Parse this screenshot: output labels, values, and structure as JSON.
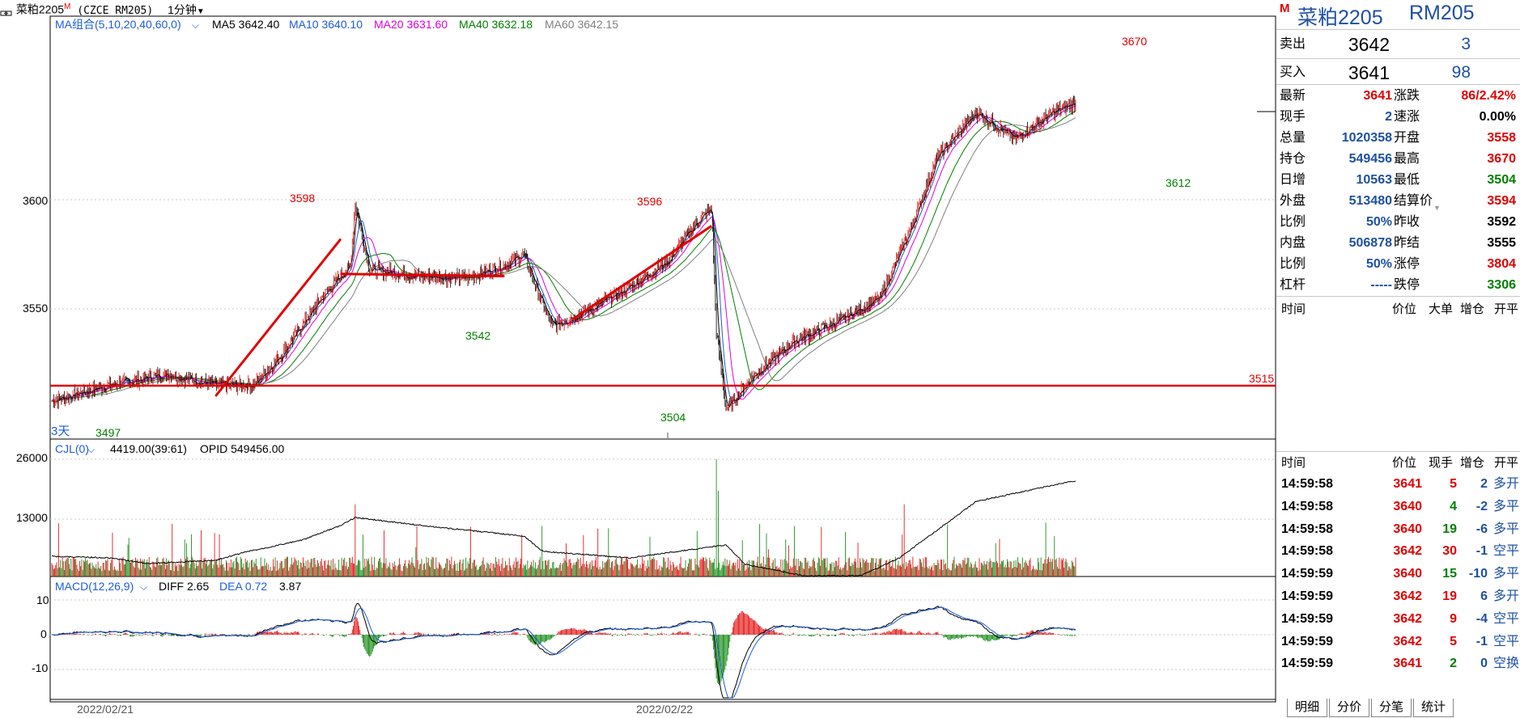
{
  "window": {
    "title_cn": "菜粕2205",
    "title_mark": "M",
    "code": "(CZCE RM205)",
    "period": "1分钟",
    "period_arrow": "chevron-down-icon",
    "link_icon": "link-icon"
  },
  "main_chart": {
    "ma_title": "MA组合(5,10,20,40,60,0)",
    "ma_legend": [
      {
        "label": "MA5 3642.40",
        "color": "#000000"
      },
      {
        "label": "MA10 3640.10",
        "color": "#1e5cdc"
      },
      {
        "label": "MA20 3631.60",
        "color": "#e000e0"
      },
      {
        "label": "MA40 3632.18",
        "color": "#008000"
      },
      {
        "label": "MA60 3642.15",
        "color": "#808080"
      }
    ],
    "y_ticks": [
      "3600",
      "3550"
    ],
    "annotations": [
      "3598",
      "3596",
      "3670",
      "3542",
      "3504",
      "3612",
      "3497",
      "3515",
      "3天"
    ],
    "dates": [
      "2022/02/21",
      "2022/02/22"
    ]
  },
  "volume_chart": {
    "title": "CJL(0)",
    "values": "4419.00(39:61)",
    "opid": "OPID 549456.00",
    "y_ticks": [
      "26000",
      "13000"
    ]
  },
  "macd_chart": {
    "title": "MACD(12,26,9)",
    "diff": "DIFF 2.65",
    "dea": "DEA 0.72",
    "macd": "3.87",
    "y_ticks": [
      "10",
      "0",
      "-10"
    ]
  },
  "chart_data": {
    "type": "candlestick",
    "title": "菜粕2205 1分钟",
    "x_dates": [
      "2022/02/21",
      "2022/02/22"
    ],
    "ylim": [
      3490,
      3680
    ],
    "price_path": [
      [
        0,
        3508
      ],
      [
        60,
        3515
      ],
      [
        120,
        3520
      ],
      [
        170,
        3515
      ],
      [
        210,
        3515
      ],
      [
        240,
        3530
      ],
      [
        280,
        3555
      ],
      [
        310,
        3570
      ],
      [
        315,
        3598
      ],
      [
        330,
        3568
      ],
      [
        380,
        3565
      ],
      [
        430,
        3564
      ],
      [
        470,
        3570
      ],
      [
        490,
        3575
      ],
      [
        510,
        3552
      ],
      [
        520,
        3542
      ],
      [
        560,
        3550
      ],
      [
        600,
        3560
      ],
      [
        640,
        3572
      ],
      [
        670,
        3590
      ],
      [
        685,
        3596
      ],
      [
        690,
        3540
      ],
      [
        700,
        3504
      ],
      [
        730,
        3520
      ],
      [
        770,
        3535
      ],
      [
        820,
        3545
      ],
      [
        860,
        3555
      ],
      [
        890,
        3585
      ],
      [
        920,
        3620
      ],
      [
        960,
        3640
      ],
      [
        1000,
        3628
      ],
      [
        1040,
        3640
      ],
      [
        1080,
        3648
      ],
      [
        1120,
        3655
      ],
      [
        1140,
        3665
      ],
      [
        1165,
        3670
      ],
      [
        1190,
        3662
      ],
      [
        1210,
        3640
      ],
      [
        1218,
        3612
      ],
      [
        1240,
        3620
      ],
      [
        1262,
        3645
      ],
      [
        1264,
        3641
      ]
    ],
    "levels": {
      "high_3598": 3598,
      "high_3596": 3596,
      "high_3670": 3670,
      "low_3542": 3542,
      "low_3504": 3504,
      "low_3612": 3612,
      "low_3497": 3497,
      "horizontal_line": 3515
    },
    "volume": {
      "ylim": [
        0,
        26000
      ],
      "ticks": [
        26000,
        13000
      ],
      "last": 4419,
      "opid": 549456
    },
    "macd": {
      "ylim": [
        -15,
        12
      ],
      "ticks": [
        10,
        0,
        -10
      ],
      "diff": 2.65,
      "dea": 0.72,
      "macd": 3.87
    }
  },
  "quote": {
    "name": "菜粕2205",
    "code": "RM205",
    "mark": "M",
    "sell_label": "卖出",
    "sell_price": "3642",
    "sell_vol": "3",
    "buy_label": "买入",
    "buy_price": "3641",
    "buy_vol": "98",
    "left": [
      {
        "label": "最新",
        "value": "3641",
        "color": "red"
      },
      {
        "label": "现手",
        "value": "2",
        "color": "blue"
      },
      {
        "label": "总量",
        "value": "1020358",
        "color": "blue"
      },
      {
        "label": "持仓",
        "value": "549456",
        "color": "blue"
      },
      {
        "label": "日增",
        "value": "10563",
        "color": "blue"
      },
      {
        "label": "外盘",
        "value": "513480",
        "color": "blue"
      },
      {
        "label": "比例",
        "value": "50%",
        "color": "blue"
      },
      {
        "label": "内盘",
        "value": "506878",
        "color": "blue"
      },
      {
        "label": "比例",
        "value": "50%",
        "color": "blue"
      },
      {
        "label": "杠杆",
        "value": "-----",
        "color": "blue"
      }
    ],
    "right": [
      {
        "label": "涨跌",
        "value": "86/2.42%",
        "color": "red"
      },
      {
        "label": "速涨",
        "value": "0.00%",
        "color": "black"
      },
      {
        "label": "开盘",
        "value": "3558",
        "color": "red"
      },
      {
        "label": "最高",
        "value": "3670",
        "color": "red"
      },
      {
        "label": "最低",
        "value": "3504",
        "color": "green"
      },
      {
        "label": "结算价",
        "value": "3594",
        "color": "red"
      },
      {
        "label": "昨收",
        "value": "3592",
        "color": "black"
      },
      {
        "label": "昨结",
        "value": "3555",
        "color": "black"
      },
      {
        "label": "涨停",
        "value": "3804",
        "color": "red"
      },
      {
        "label": "跌停",
        "value": "3306",
        "color": "green"
      }
    ]
  },
  "tick_header_top": [
    "时间",
    "价位",
    "大单",
    "增仓",
    "开平"
  ],
  "tick_header": [
    "时间",
    "价位",
    "现手",
    "增仓",
    "开平"
  ],
  "ticks": [
    {
      "time": "14:59:58",
      "price": "3641",
      "vol": "5",
      "oi": "2",
      "type": "多开",
      "pc": "red",
      "vc": "red",
      "oc": "blue"
    },
    {
      "time": "14:59:58",
      "price": "3640",
      "vol": "4",
      "oi": "-2",
      "type": "多平",
      "pc": "red",
      "vc": "green",
      "oc": "blue"
    },
    {
      "time": "14:59:58",
      "price": "3640",
      "vol": "19",
      "oi": "-6",
      "type": "多平",
      "pc": "red",
      "vc": "green",
      "oc": "blue"
    },
    {
      "time": "14:59:58",
      "price": "3642",
      "vol": "30",
      "oi": "-1",
      "type": "空平",
      "pc": "red",
      "vc": "red",
      "oc": "blue"
    },
    {
      "time": "14:59:59",
      "price": "3640",
      "vol": "15",
      "oi": "-10",
      "type": "多平",
      "pc": "red",
      "vc": "green",
      "oc": "blue"
    },
    {
      "time": "14:59:59",
      "price": "3642",
      "vol": "19",
      "oi": "6",
      "type": "多开",
      "pc": "red",
      "vc": "red",
      "oc": "blue"
    },
    {
      "time": "14:59:59",
      "price": "3642",
      "vol": "9",
      "oi": "-4",
      "type": "空平",
      "pc": "red",
      "vc": "red",
      "oc": "blue"
    },
    {
      "time": "14:59:59",
      "price": "3642",
      "vol": "5",
      "oi": "-1",
      "type": "空平",
      "pc": "red",
      "vc": "red",
      "oc": "blue"
    },
    {
      "time": "14:59:59",
      "price": "3641",
      "vol": "2",
      "oi": "0",
      "type": "空换",
      "pc": "red",
      "vc": "green",
      "oc": "blue"
    }
  ],
  "tabs": [
    "明细",
    "分价",
    "分笔",
    "统计"
  ],
  "colors": {
    "up": "#e00000",
    "down": "#008000",
    "blue": "#1e50a0",
    "grid": "#c8c8c8"
  }
}
